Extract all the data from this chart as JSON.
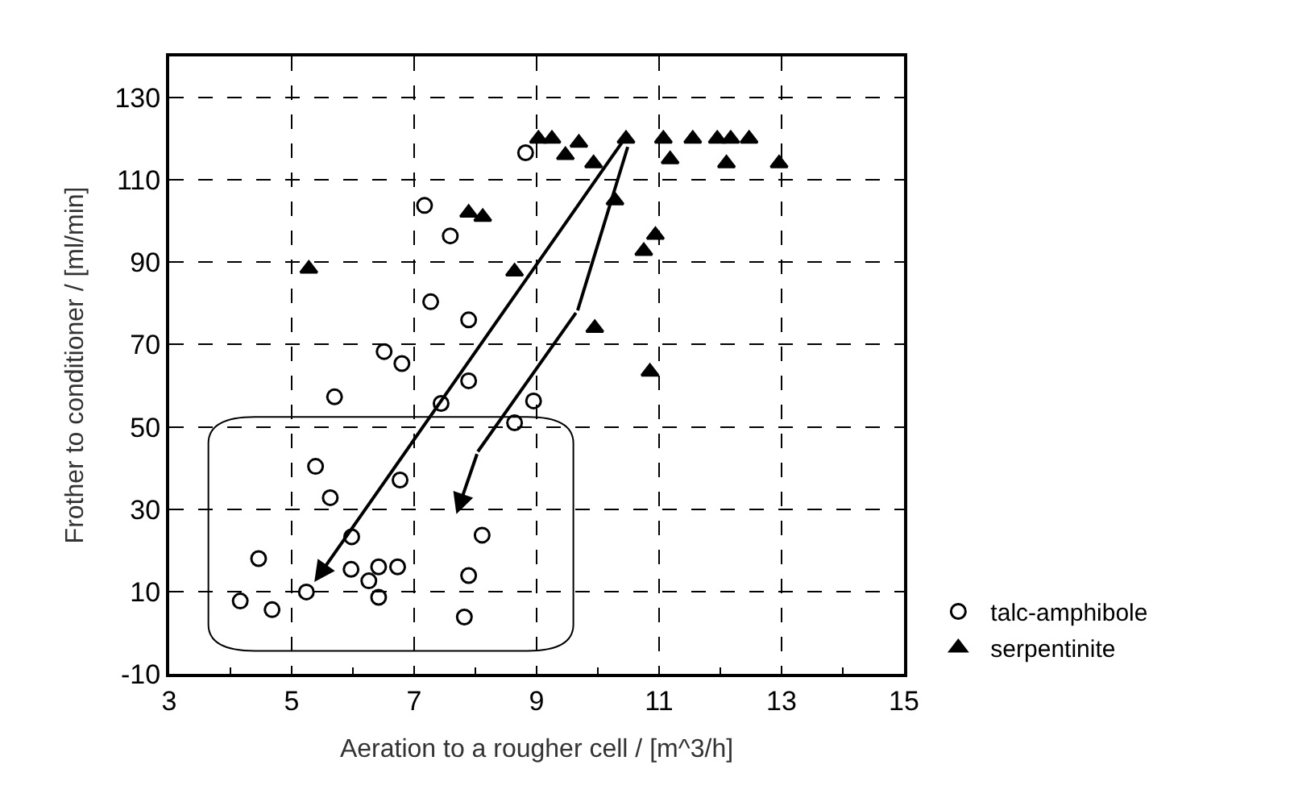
{
  "chart_data": {
    "type": "scatter",
    "xlabel": "Aeration to a rougher cell / [m^3/h]",
    "ylabel": "Frother to conditioner / [ml/min]",
    "xlim": [
      3,
      15
    ],
    "xticks": [
      3,
      5,
      7,
      9,
      11,
      13,
      15
    ],
    "ylim": [
      -10,
      140
    ],
    "yticks": [
      -10,
      10,
      30,
      50,
      70,
      90,
      110,
      130
    ],
    "grid": true,
    "legend": "bottom right",
    "series": [
      {
        "name": "talc-amphibole",
        "color": "#000000",
        "marker": "circle",
        "x": [
          8.82,
          7.17,
          7.59,
          7.27,
          7.89,
          6.51,
          6.8,
          5.7,
          7.89,
          7.44,
          8.95,
          8.64,
          5.39,
          5.63,
          6.77,
          5.98,
          8.11,
          4.46,
          5.97,
          6.42,
          6.73,
          6.26,
          7.89,
          5.24,
          4.16,
          4.68,
          6.42,
          7.82
        ],
        "values": [
          116.6,
          103.8,
          96.4,
          80.4,
          76,
          68.3,
          65.4,
          57.3,
          61.2,
          55.7,
          56.3,
          51,
          40.4,
          32.8,
          37.1,
          23.3,
          23.7,
          18,
          15.4,
          16,
          16,
          12.6,
          13.9,
          9.9,
          7.7,
          5.6,
          8.6,
          3.8
        ]
      },
      {
        "name": "serpentinite",
        "color": "#000000",
        "marker": "triangle",
        "x": [
          9.03,
          9.25,
          9.69,
          9.47,
          9.93,
          10.46,
          11.07,
          11.18,
          11.55,
          11.95,
          12.17,
          12.47,
          12.1,
          12.96,
          10.28,
          7.89,
          8.12,
          10.94,
          10.75,
          5.28,
          8.64,
          9.95,
          10.85
        ],
        "values": [
          120,
          120,
          119,
          116,
          114,
          120,
          120,
          115,
          120,
          120,
          120,
          120,
          114,
          114,
          105,
          102,
          101,
          96.6,
          92.7,
          88.4,
          87.7,
          74,
          63.4
        ]
      }
    ]
  }
}
